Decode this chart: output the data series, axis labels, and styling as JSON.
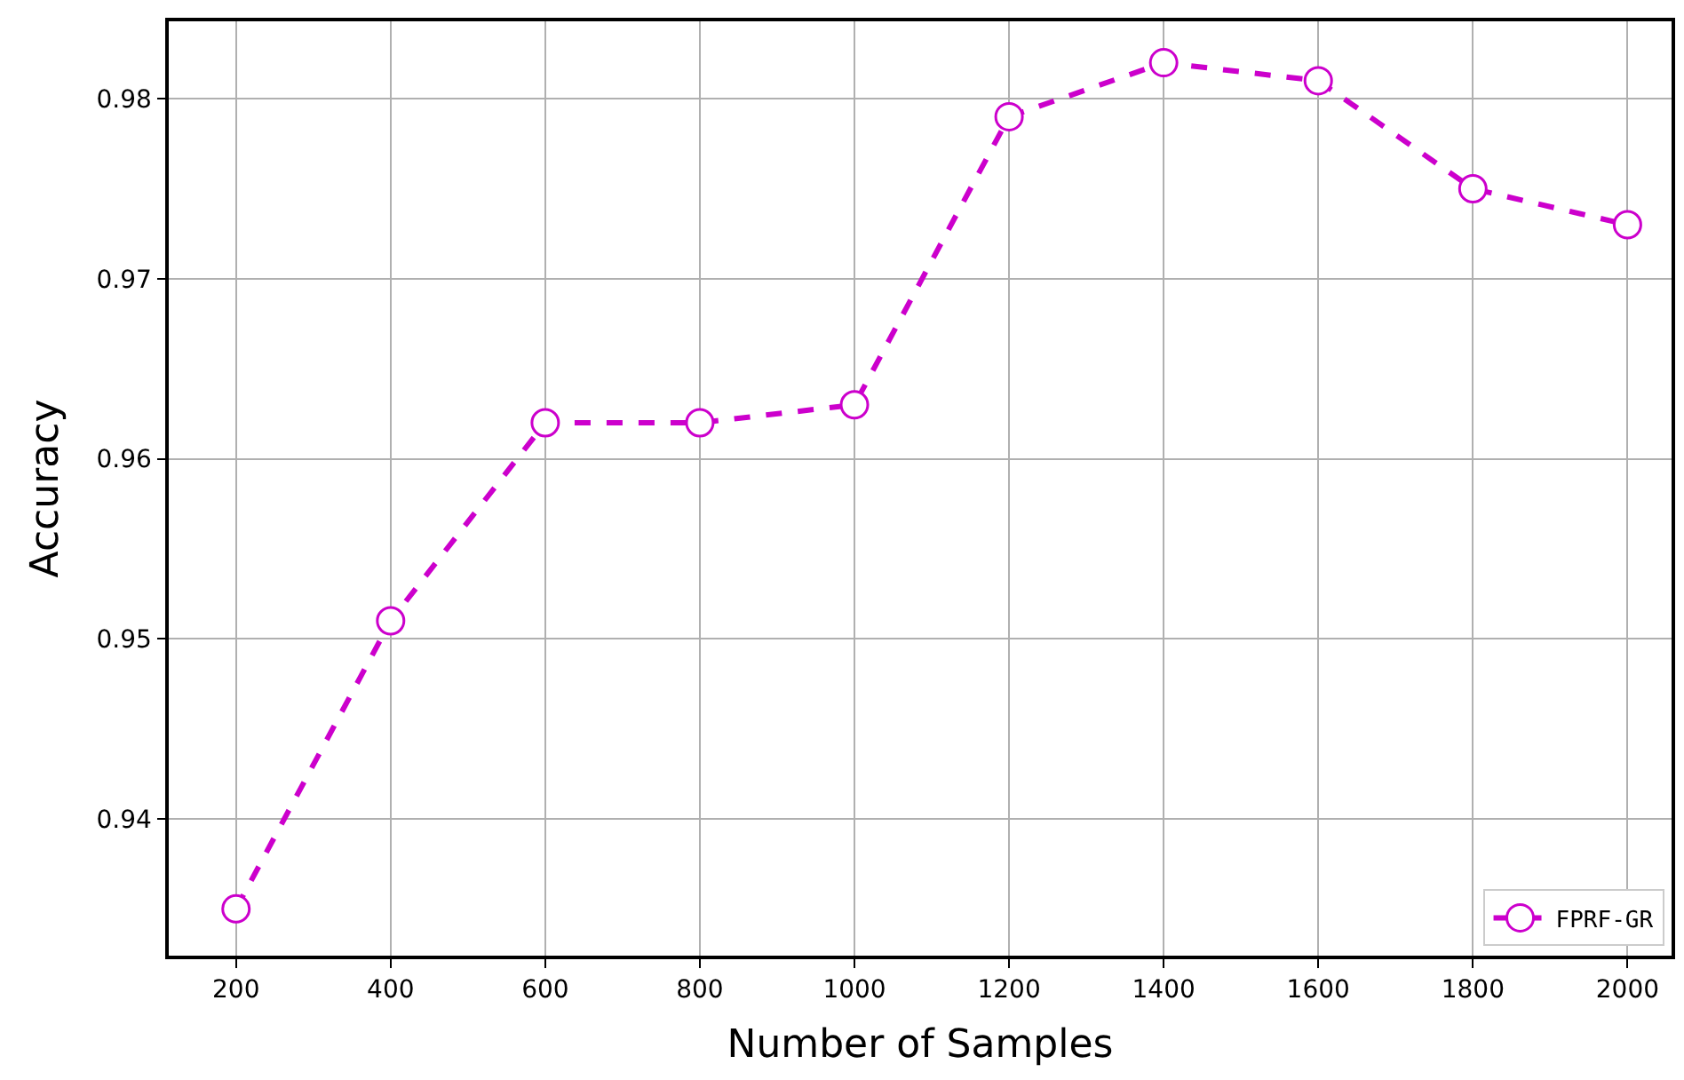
{
  "chart_data": {
    "type": "line",
    "xlabel": "Number of Samples",
    "ylabel": "Accuracy",
    "x": [
      200,
      400,
      600,
      800,
      1000,
      1200,
      1400,
      1600,
      1800,
      2000
    ],
    "series": [
      {
        "name": "FPRF-GR",
        "color": "#cc00cc",
        "values": [
          0.935,
          0.951,
          0.962,
          0.962,
          0.963,
          0.979,
          0.982,
          0.981,
          0.975,
          0.973
        ]
      }
    ],
    "xlim": [
      113,
      2057
    ],
    "ylim": [
      0.9324,
      0.9843
    ],
    "xticks": [
      200,
      400,
      600,
      800,
      1000,
      1200,
      1400,
      1600,
      1800,
      2000
    ],
    "yticks": [
      {
        "value": 0.94,
        "label": "0.94"
      },
      {
        "value": 0.95,
        "label": "0.95"
      },
      {
        "value": 0.96,
        "label": "0.96"
      },
      {
        "value": 0.97,
        "label": "0.97"
      },
      {
        "value": 0.98,
        "label": "0.98"
      }
    ],
    "grid": true,
    "legend": "bottom right",
    "marker": "circle",
    "line_style": "dashed"
  }
}
